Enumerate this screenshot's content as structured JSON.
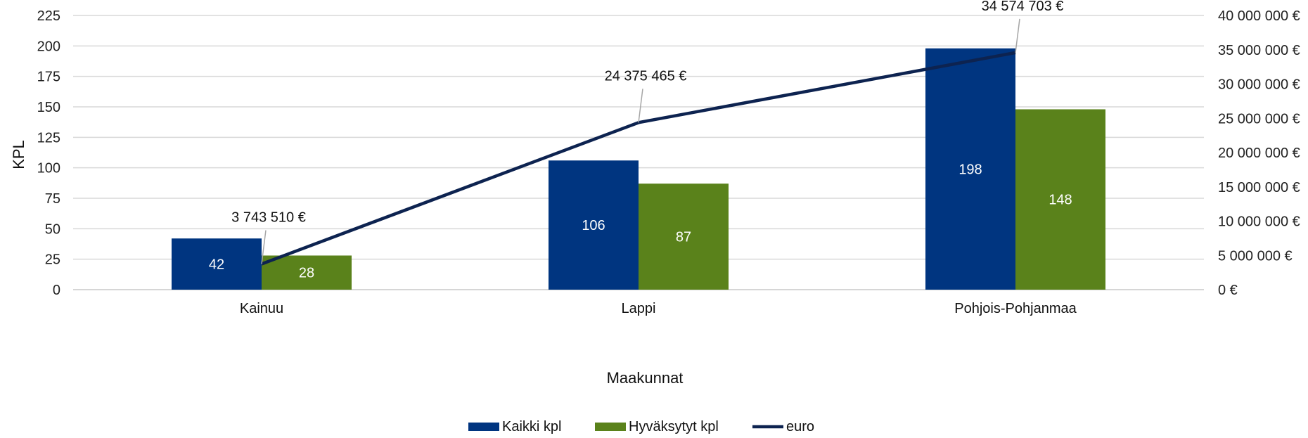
{
  "chart_data": {
    "type": "bar",
    "categories": [
      "Kainuu",
      "Lappi",
      "Pohjois-Pohjanmaa"
    ],
    "series": [
      {
        "name": "Kaikki kpl",
        "type": "bar",
        "axis": "left",
        "color": "#003580",
        "values": [
          42,
          106,
          198
        ],
        "labels": [
          "42",
          "106",
          "198"
        ]
      },
      {
        "name": "Hyväksytyt kpl",
        "type": "bar",
        "axis": "left",
        "color": "#5a821b",
        "values": [
          28,
          87,
          148
        ],
        "labels": [
          "28",
          "87",
          "148"
        ]
      },
      {
        "name": "euro",
        "type": "line",
        "axis": "right",
        "color": "#0d2350",
        "values": [
          3743510,
          24375465,
          34574703
        ],
        "labels": [
          "3 743 510 €",
          "24 375 465 €",
          "34 574 703 €"
        ]
      }
    ],
    "xlabel": "Maakunnat",
    "ylabel": "KPL",
    "ylim": [
      0,
      225
    ],
    "yticks": [
      "0",
      "25",
      "50",
      "75",
      "100",
      "125",
      "150",
      "175",
      "200",
      "225"
    ],
    "y2lim": [
      0,
      40000000
    ],
    "y2ticks": [
      "0 €",
      "5 000 000 €",
      "10 000 000 €",
      "15 000 000 €",
      "20 000 000 €",
      "25 000 000 €",
      "30 000 000 €",
      "35 000 000 €",
      "40 000 000 €"
    ],
    "grid": true,
    "legend_position": "bottom"
  }
}
